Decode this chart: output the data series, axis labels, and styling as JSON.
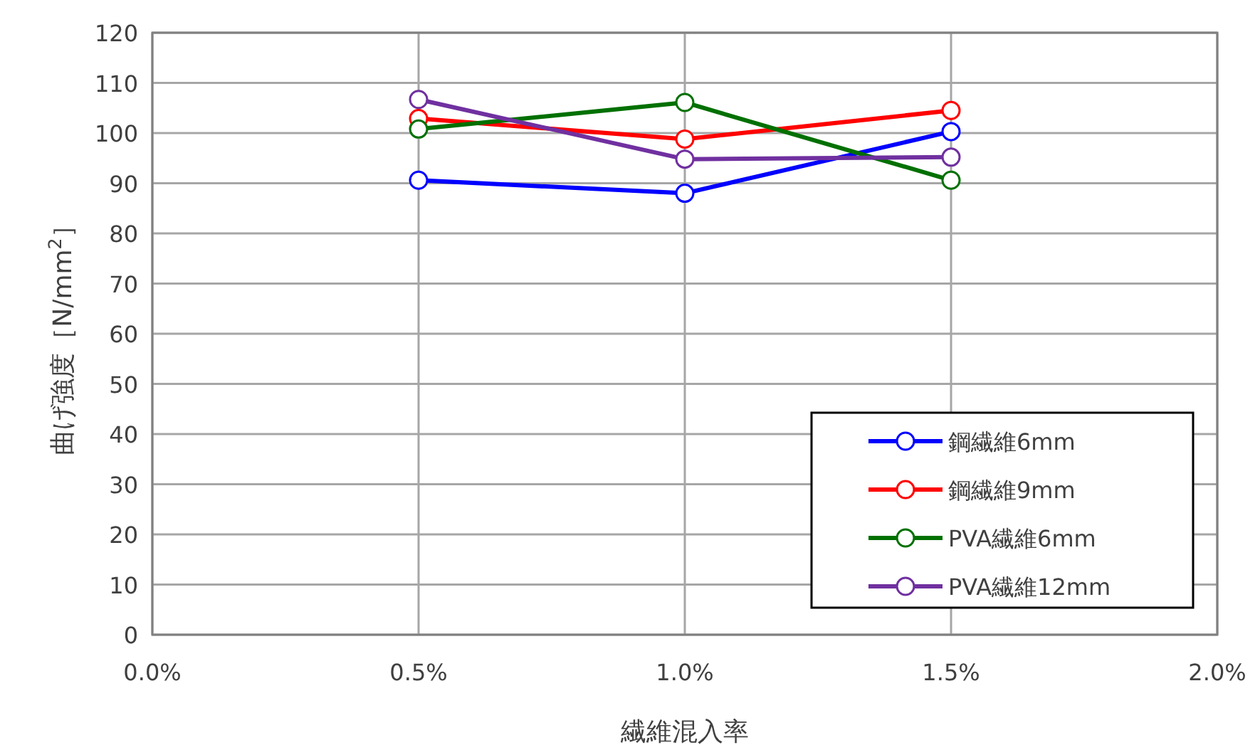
{
  "chart_data": {
    "type": "line",
    "xlabel": "繊維混入率",
    "ylabel": "曲げ強度［N/mm$^{2}$］",
    "x": [
      0.5,
      1.0,
      1.5
    ],
    "series": [
      {
        "name": "鋼繊維6mm",
        "color": "#0000ff",
        "values": [
          90.6,
          88.0,
          100.3
        ]
      },
      {
        "name": "鋼繊維9mm",
        "color": "#ff0000",
        "values": [
          102.9,
          98.8,
          104.5
        ]
      },
      {
        "name": "PVA繊維6mm",
        "color": "#007000",
        "values": [
          100.8,
          106.1,
          90.6
        ]
      },
      {
        "name": "PVA繊維12mm",
        "color": "#7030a0",
        "values": [
          106.7,
          94.8,
          95.2
        ]
      }
    ],
    "xlim": [
      0,
      2.0
    ],
    "xticks": [
      {
        "value": 0,
        "label": "0.0%"
      },
      {
        "value": 0.5,
        "label": "0.5%"
      },
      {
        "value": 1.0,
        "label": "1.0%"
      },
      {
        "value": 1.5,
        "label": "1.5%"
      },
      {
        "value": 2.0,
        "label": "2.0%"
      }
    ],
    "ylim": [
      0,
      120
    ],
    "yticks": [
      0,
      10,
      20,
      30,
      40,
      50,
      60,
      70,
      80,
      90,
      100,
      110,
      120
    ],
    "grid": true,
    "legend": "bottom right",
    "marker": "circle",
    "line_style": "solid"
  }
}
